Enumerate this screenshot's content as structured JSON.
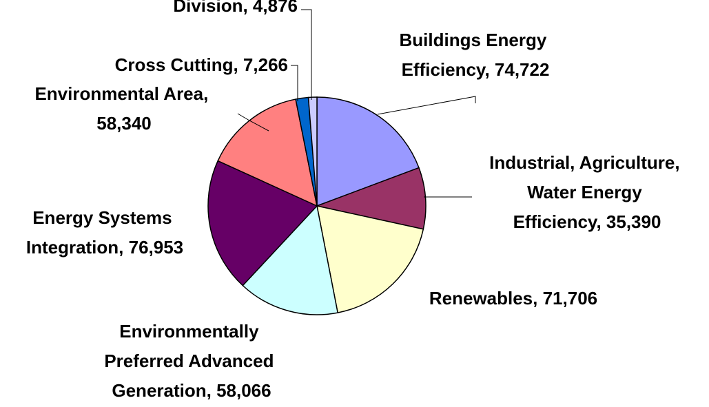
{
  "chart_data": {
    "type": "pie",
    "values": [
      74722,
      35390,
      71706,
      58066,
      76953,
      58340,
      7266,
      4876
    ],
    "value_labels": [
      "Buildings Energy Efficiency, 74,722",
      "Industrial, Agriculture, Water Energy Efficiency, 35,390",
      "Renewables, 71,706",
      "Environmentally Preferred Advanced Generation, 58,066",
      "Energy Systems Integration, 76,953",
      "Environmental Area, 58,340",
      "Cross Cutting, 7,266",
      "Division, 4,876"
    ],
    "colors": [
      "#9999ff",
      "#993366",
      "#ffffcc",
      "#ccffff",
      "#660066",
      "#ff8080",
      "#0066cc",
      "#ccccff"
    ]
  }
}
